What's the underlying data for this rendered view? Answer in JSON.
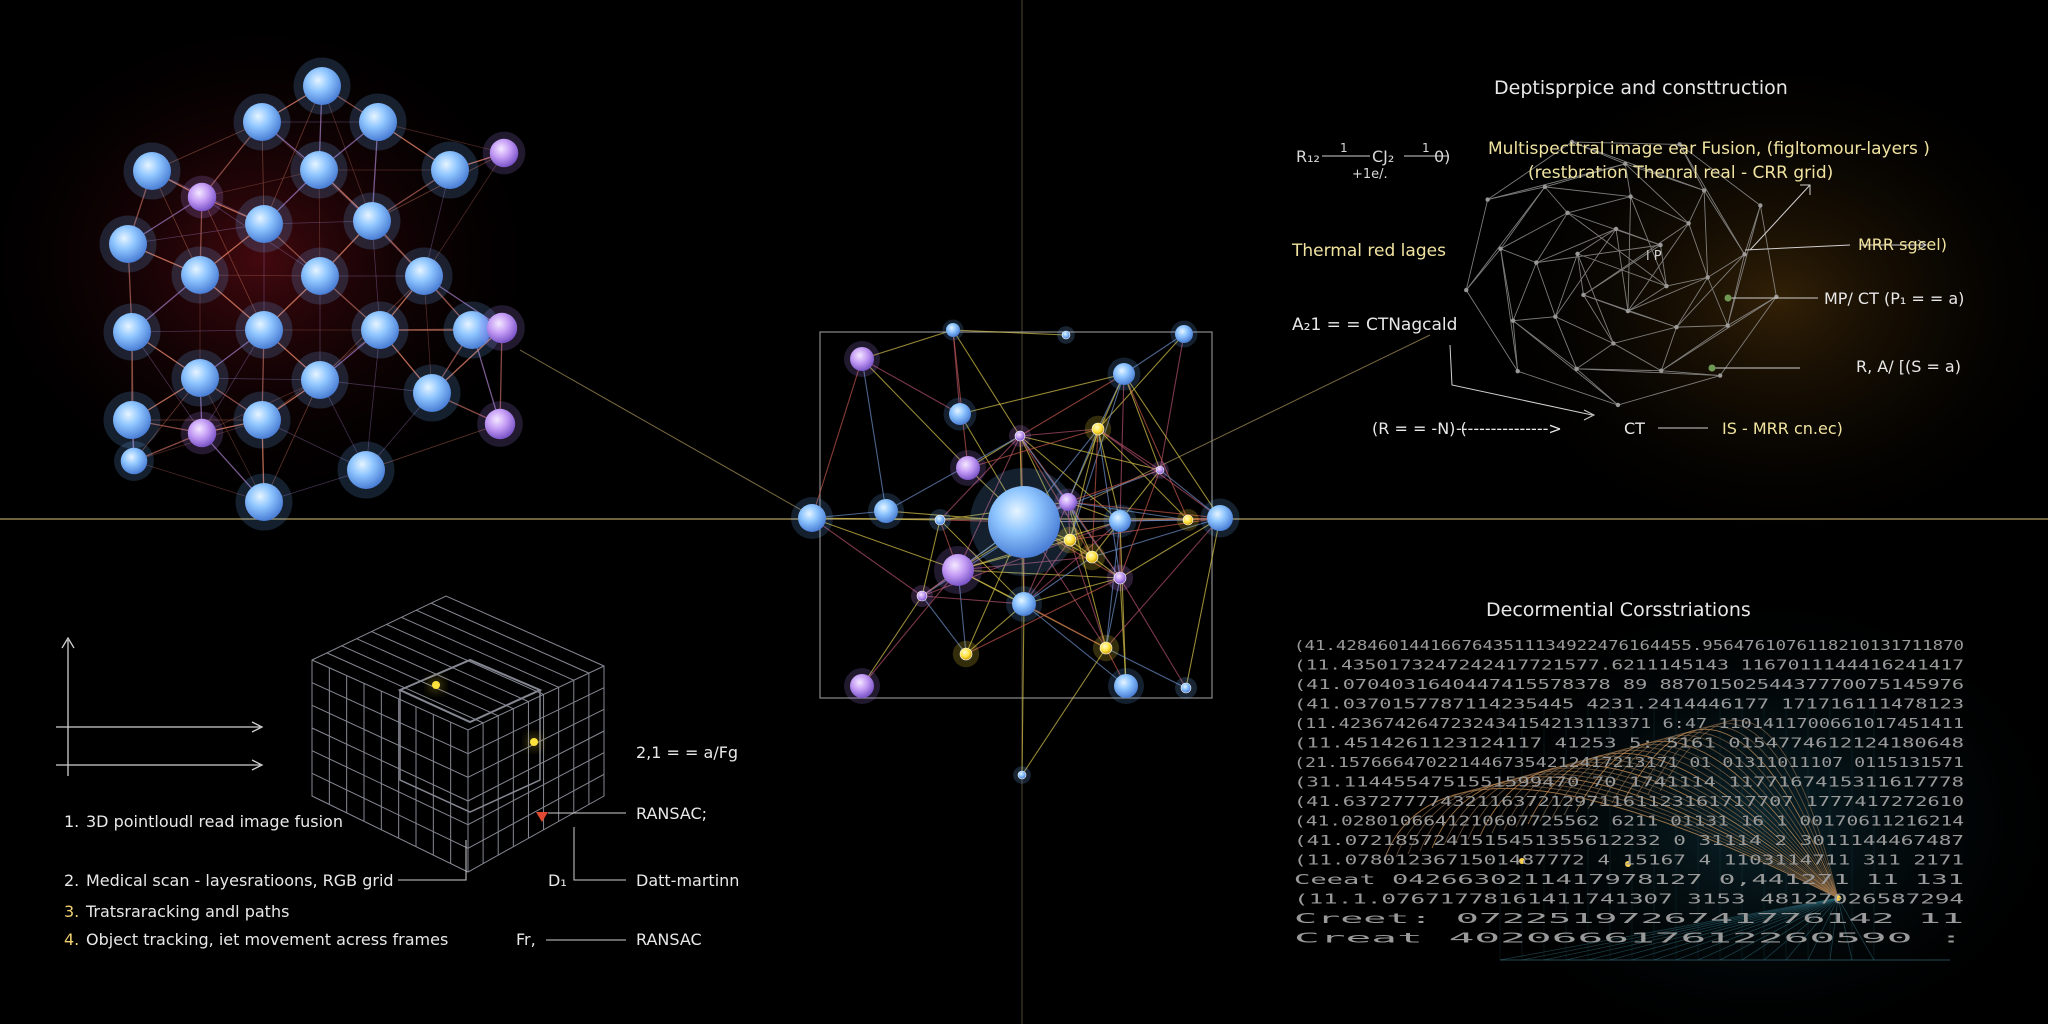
{
  "colors": {
    "background": "#000000",
    "node_fill": "#7db9ff",
    "node_purple": "#c79bff",
    "node_yellow": "#ffe23a",
    "edge_red": "#c0564a",
    "edge_yellow": "#d8c44a",
    "edge_blue": "#6d8fc8",
    "text_white": "#e8e8e8",
    "text_yellow": "#f3e6a0",
    "axis": "#d8c080",
    "glow_red": "#3a0608",
    "glow_orange": "#3a2408"
  },
  "center_label": "",
  "top_right": {
    "title": "Deptisprpice and consttruction",
    "fraction_row": {
      "r": "R₁₂",
      "n1": "1",
      "c": "CJ₂",
      "n2": "1",
      "close": "0)",
      "denom": "+1e/."
    },
    "thermal": "Thermal red lages",
    "equation": "A₂1 = = CTNagcald",
    "fusion_line1": "Multispecttral image ear Fusion, (figltomour-layers )",
    "fusion_line2": "(restbration Thenral real - CRR grid)",
    "lp_label": "l P",
    "callouts": [
      "MRR sgcel)",
      "MP/ CT (P₁ = = a)",
      "R, A/ [(S = a)"
    ],
    "bottom_flow": {
      "left": "(R = = -N) (",
      "dashes": "---------------->",
      "ct": "CT",
      "right": "IS - MRR cn.ec)"
    }
  },
  "bottom_left": {
    "items": [
      {
        "num": "1.",
        "text": "3D pointloudl read image fusion"
      },
      {
        "num": "2.",
        "text": "Medical scan - layesratioons, RGB grid"
      },
      {
        "num": "3.",
        "text": "Tratsraracking andl paths"
      },
      {
        "num": "4.",
        "text": "Object tracking, iet movement acress frames"
      }
    ],
    "formula": "2,1 = = a/Fg",
    "labels": [
      "RANSAC;",
      "Datt-martinn",
      "RANSAC"
    ],
    "markers": [
      "D₁",
      "Fr,"
    ]
  },
  "bottom_right": {
    "title": "Decormential Corsstriations",
    "rows": [
      "(41.4284601441667643511134922476164455.9564761076118210131711870",
      "(11.4350173247242417721577.6211145143 1167011144416241417",
      "(41.0704031640447415578378 89 8870150254437770075145976",
      "(41.0370157787114235445 4231.2414446177 171716111478123",
      "(11.4236742647232434154213113371 6:47 1101411700661017451411",
      "(11.4514261123124117 41253  5: 5161 0154774612124180648",
      "(21.1576664702214467354212417213171 01 01311011107 0115131571",
      "(31.1144554751551599470 70  1741114 1177167415311617778",
      "(41.6372777743211637212971161123161717707 1777417272610",
      "(41.0280106641210607725562 6211 01131 16 1 00170611216214",
      "(41.0721857241515451355612232 0 31114 2 3011144467487",
      "(11.0780123671501487772 4 15167 4 1103114711 311 2171",
      "Ceeat 0426630211417978127 0,441271 11 131",
      "(11.1.07671778161411741307 3153 48127026587294",
      "Creet: 0722519726741776142 11",
      "Creat 402066617612260590 :"
    ]
  }
}
